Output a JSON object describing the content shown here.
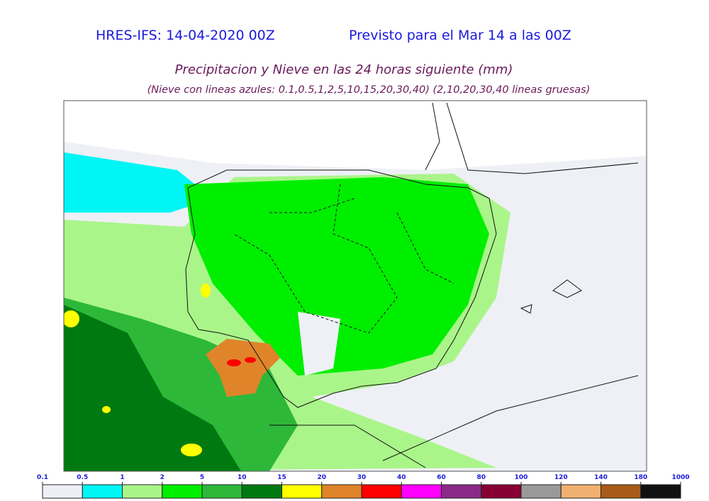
{
  "header": {
    "left": "HRES-IFS: 14-04-2020 00Z",
    "right": "Previsto para el  Mar 14 a las 00Z",
    "title": "Precipitacion y Nieve en las 24 horas siguiente (mm)",
    "subtitle": "(Nieve con lineas azules: 0.1,0.5,1,2,5,10,15,20,30,40)  (2,10,20,30,40 lineas gruesas)"
  },
  "legend": {
    "ticks": [
      0.1,
      0.5,
      1,
      2,
      5,
      10,
      15,
      20,
      30,
      40,
      60,
      80,
      100,
      120,
      140,
      180,
      1000
    ],
    "colors": [
      "#eef0f5",
      "#00f5f5",
      "#aaf58a",
      "#00ee00",
      "#2db83a",
      "#007a10",
      "#ffff00",
      "#e0842a",
      "#ff0000",
      "#ff00ff",
      "#8a2a88",
      "#880033",
      "#999999",
      "#f0b070",
      "#a85a18",
      "#111111"
    ]
  }
}
